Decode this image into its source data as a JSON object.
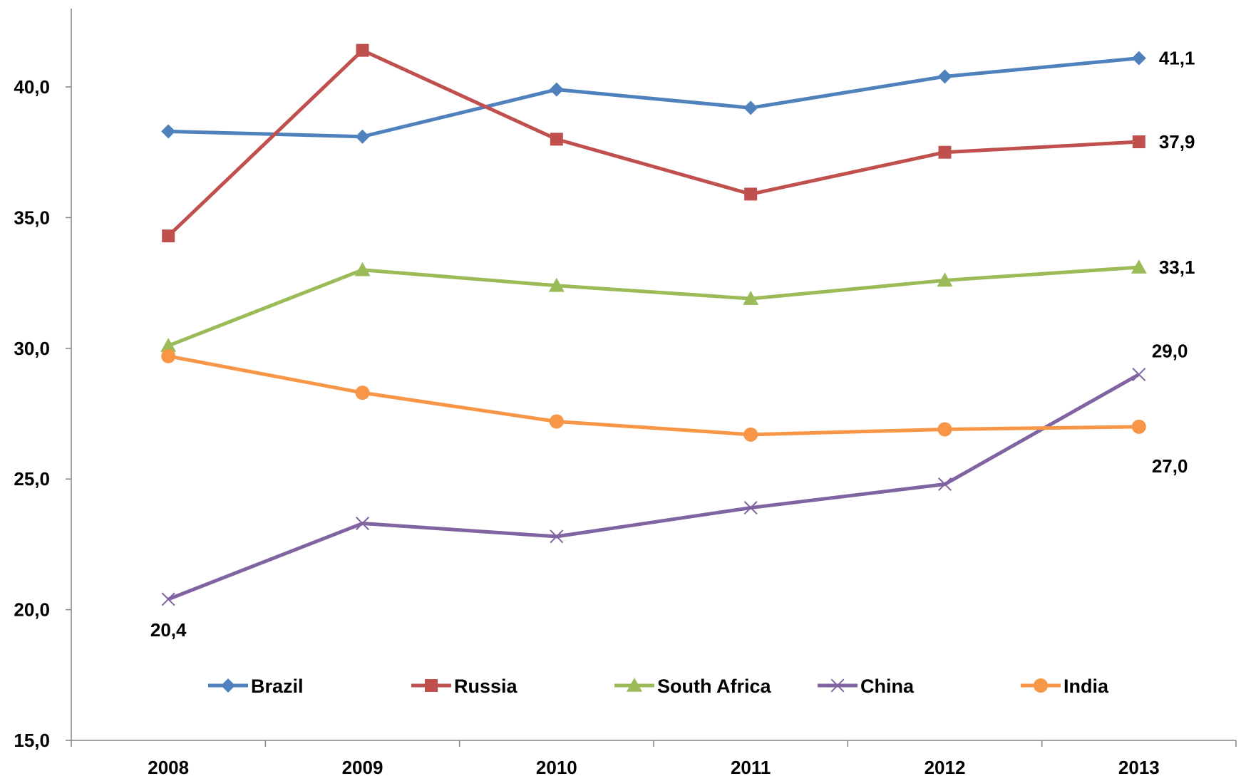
{
  "chart_data": {
    "type": "line",
    "title": "",
    "xlabel": "",
    "ylabel": "",
    "categories": [
      "2008",
      "2009",
      "2010",
      "2011",
      "2012",
      "2013"
    ],
    "ylim": [
      15,
      42.5
    ],
    "yticks": [
      15,
      20,
      25,
      30,
      35,
      40
    ],
    "ytick_labels": [
      "15,0",
      "20,0",
      "25,0",
      "30,0",
      "35,0",
      "40,0"
    ],
    "grid": false,
    "legend_position": "bottom",
    "series": [
      {
        "name": "Brazil",
        "values": [
          38.3,
          38.1,
          39.9,
          39.2,
          40.4,
          41.1
        ],
        "color": "#4F81BD",
        "marker": "diamond"
      },
      {
        "name": "Russia",
        "values": [
          34.3,
          41.4,
          38.0,
          35.9,
          37.5,
          37.9
        ],
        "color": "#C0504D",
        "marker": "square"
      },
      {
        "name": "South Africa",
        "values": [
          30.1,
          33.0,
          32.4,
          31.9,
          32.6,
          33.1
        ],
        "color": "#9BBB59",
        "marker": "triangle"
      },
      {
        "name": "China",
        "values": [
          20.4,
          23.3,
          22.8,
          23.9,
          24.8,
          29.0
        ],
        "color": "#8064A2",
        "marker": "x"
      },
      {
        "name": "India",
        "values": [
          29.7,
          28.3,
          27.2,
          26.7,
          26.9,
          27.0
        ],
        "color": "#F79646",
        "marker": "circle"
      }
    ],
    "data_labels": [
      {
        "series": "Brazil",
        "category": "2013",
        "text": "41,1",
        "position": "right"
      },
      {
        "series": "Russia",
        "category": "2013",
        "text": "37,9",
        "position": "right"
      },
      {
        "series": "South Africa",
        "category": "2013",
        "text": "33,1",
        "position": "right"
      },
      {
        "series": "China",
        "category": "2013",
        "text": "29,0",
        "position": "above-right"
      },
      {
        "series": "India",
        "category": "2013",
        "text": "27,0",
        "position": "below-right"
      },
      {
        "series": "China",
        "category": "2008",
        "text": "20,4",
        "position": "below"
      }
    ]
  }
}
